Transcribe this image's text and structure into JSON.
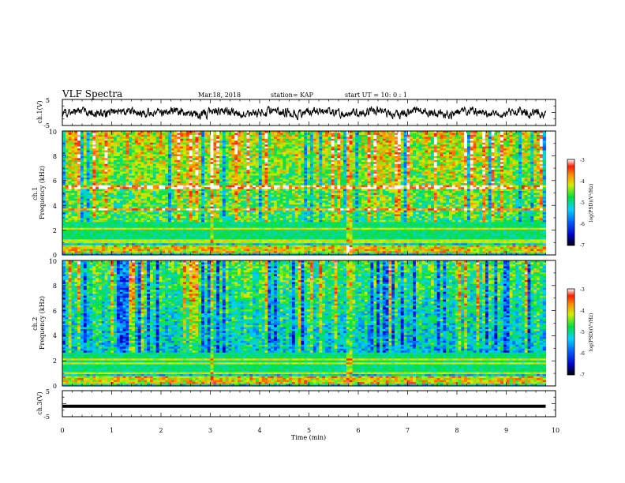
{
  "header": {
    "title": "VLF Spectra",
    "date": "Mar.18, 2018",
    "station": "station= KAP",
    "start": "start  UT =   10: 0  : 1"
  },
  "chart_data": [
    {
      "type": "line",
      "panel": "ch1-waveform",
      "ylabel": "ch.1(V)",
      "ylim": [
        -5,
        5
      ],
      "yticks": [
        "5",
        "-5"
      ],
      "note": "noisy waveform of roughly +/-2 V amplitude over 0-9.8 min"
    },
    {
      "type": "heatmap",
      "panel": "ch1-spectrogram",
      "ylabel": "ch.1\nFrequency (kHz)",
      "ylim": [
        0,
        10
      ],
      "yticks": [
        "0",
        "2",
        "4",
        "6",
        "8",
        "10"
      ],
      "xlim": [
        0,
        9.8
      ],
      "colorbar": {
        "label": "log(PSD)(V²/Hz)",
        "range": [
          -7,
          -3
        ],
        "ticks": [
          "-3",
          "-4",
          "-5",
          "-6",
          "-7"
        ]
      },
      "bands_khz": [
        0.3,
        0.6,
        1.1,
        2.1,
        3.7,
        5.5
      ]
    },
    {
      "type": "heatmap",
      "panel": "ch2-spectrogram",
      "ylabel": "ch.2\nFrequency (kHz)",
      "ylim": [
        0,
        10
      ],
      "yticks": [
        "0",
        "2",
        "4",
        "6",
        "8",
        "10"
      ],
      "xlim": [
        0,
        9.8
      ],
      "colorbar": {
        "label": "log(PSD)(V²/Hz)",
        "range": [
          -7,
          -3
        ],
        "ticks": [
          "-3",
          "-4",
          "-5",
          "-6",
          "-7"
        ]
      },
      "bands_khz": [
        0.3,
        0.6,
        1.0,
        1.8,
        2.1
      ]
    },
    {
      "type": "line",
      "panel": "ch3-waveform",
      "ylabel": "ch.3(V)",
      "ylim": [
        -5,
        5
      ],
      "yticks": [
        "5",
        "-5"
      ],
      "x": [
        0,
        9.8
      ],
      "y": [
        -1,
        -1
      ]
    }
  ],
  "xaxis": {
    "label": "Time  (min)",
    "range": [
      0,
      10
    ],
    "ticks": [
      "0",
      "1",
      "2",
      "3",
      "4",
      "5",
      "6",
      "7",
      "8",
      "9",
      "10"
    ]
  },
  "colorbar_label": "log(PSD)(V²/Hz)"
}
